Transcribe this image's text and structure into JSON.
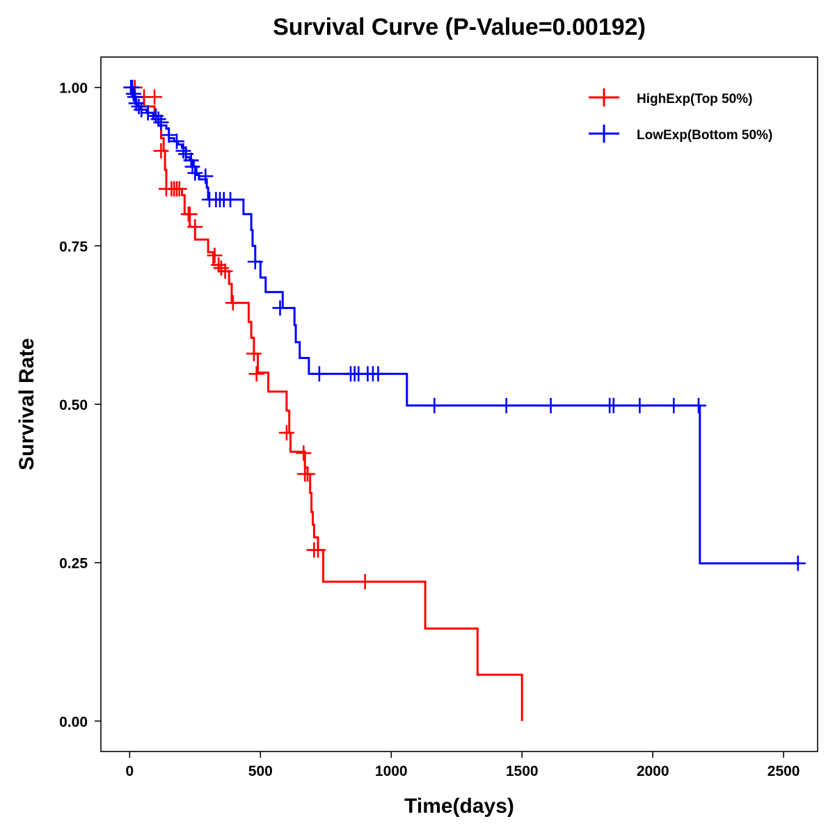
{
  "chart_data": {
    "type": "line",
    "subtype": "kaplan-meier",
    "title": "Survival Curve (P-Value=0.00192)",
    "xlabel": "Time(days)",
    "ylabel": "Survival Rate",
    "xlim": [
      -110,
      2630
    ],
    "ylim": [
      -0.048,
      1.048
    ],
    "xticks": [
      0,
      500,
      1000,
      1500,
      2000,
      2500
    ],
    "xtick_labels": [
      "0",
      "500",
      "1000",
      "1500",
      "2000",
      "2500"
    ],
    "yticks": [
      0,
      0.25,
      0.5,
      0.75,
      1.0
    ],
    "ytick_labels": [
      "0.00",
      "0.25",
      "0.50",
      "0.75",
      "1.00"
    ],
    "grid": false,
    "legend_position": "top-right",
    "series": [
      {
        "name": "HighExp(Top 50%)",
        "color": "#ff0000",
        "steps": [
          [
            0,
            1.0
          ],
          [
            15,
            0.985
          ],
          [
            55,
            0.97
          ],
          [
            95,
            0.955
          ],
          [
            110,
            0.94
          ],
          [
            120,
            0.92
          ],
          [
            130,
            0.9
          ],
          [
            135,
            0.87
          ],
          [
            140,
            0.84
          ],
          [
            200,
            0.83
          ],
          [
            210,
            0.8
          ],
          [
            230,
            0.78
          ],
          [
            250,
            0.76
          ],
          [
            300,
            0.74
          ],
          [
            320,
            0.72
          ],
          [
            340,
            0.71
          ],
          [
            360,
            0.71
          ],
          [
            380,
            0.69
          ],
          [
            390,
            0.66
          ],
          [
            455,
            0.63
          ],
          [
            465,
            0.605
          ],
          [
            475,
            0.58
          ],
          [
            490,
            0.55
          ],
          [
            530,
            0.52
          ],
          [
            600,
            0.49
          ],
          [
            610,
            0.455
          ],
          [
            615,
            0.425
          ],
          [
            670,
            0.4
          ],
          [
            680,
            0.39
          ],
          [
            690,
            0.36
          ],
          [
            695,
            0.33
          ],
          [
            700,
            0.31
          ],
          [
            705,
            0.29
          ],
          [
            720,
            0.27
          ],
          [
            740,
            0.22
          ],
          [
            1130,
            0.146
          ],
          [
            1330,
            0.073
          ],
          [
            1500,
            0.0
          ]
        ],
        "end": 1500,
        "censored": [
          [
            20,
            1.0
          ],
          [
            55,
            0.985
          ],
          [
            95,
            0.985
          ],
          [
            120,
            0.9
          ],
          [
            140,
            0.84
          ],
          [
            160,
            0.84
          ],
          [
            170,
            0.84
          ],
          [
            180,
            0.84
          ],
          [
            190,
            0.84
          ],
          [
            225,
            0.8
          ],
          [
            230,
            0.8
          ],
          [
            250,
            0.78
          ],
          [
            325,
            0.735
          ],
          [
            340,
            0.72
          ],
          [
            350,
            0.715
          ],
          [
            365,
            0.71
          ],
          [
            395,
            0.66
          ],
          [
            475,
            0.58
          ],
          [
            485,
            0.548
          ],
          [
            600,
            0.455
          ],
          [
            665,
            0.423
          ],
          [
            670,
            0.39
          ],
          [
            680,
            0.39
          ],
          [
            705,
            0.27
          ],
          [
            720,
            0.27
          ],
          [
            900,
            0.22
          ]
        ]
      },
      {
        "name": "LowExp(Bottom 50%)",
        "color": "#0000ff",
        "steps": [
          [
            0,
            1.0
          ],
          [
            5,
            0.99
          ],
          [
            10,
            0.985
          ],
          [
            15,
            0.98
          ],
          [
            25,
            0.975
          ],
          [
            30,
            0.97
          ],
          [
            40,
            0.965
          ],
          [
            65,
            0.96
          ],
          [
            90,
            0.95
          ],
          [
            110,
            0.94
          ],
          [
            140,
            0.935
          ],
          [
            150,
            0.92
          ],
          [
            170,
            0.915
          ],
          [
            185,
            0.91
          ],
          [
            200,
            0.905
          ],
          [
            215,
            0.89
          ],
          [
            230,
            0.885
          ],
          [
            245,
            0.875
          ],
          [
            255,
            0.862
          ],
          [
            265,
            0.855
          ],
          [
            290,
            0.855
          ],
          [
            295,
            0.842
          ],
          [
            300,
            0.823
          ],
          [
            435,
            0.8
          ],
          [
            465,
            0.775
          ],
          [
            470,
            0.75
          ],
          [
            480,
            0.725
          ],
          [
            500,
            0.7
          ],
          [
            520,
            0.677
          ],
          [
            585,
            0.652
          ],
          [
            630,
            0.625
          ],
          [
            635,
            0.598
          ],
          [
            650,
            0.573
          ],
          [
            685,
            0.548
          ],
          [
            1060,
            0.498
          ],
          [
            2180,
            0.249
          ]
        ],
        "end": 2560,
        "censored": [
          [
            5,
            1.0
          ],
          [
            10,
            1.0
          ],
          [
            15,
            0.99
          ],
          [
            20,
            0.985
          ],
          [
            25,
            0.975
          ],
          [
            35,
            0.97
          ],
          [
            45,
            0.965
          ],
          [
            70,
            0.96
          ],
          [
            100,
            0.955
          ],
          [
            110,
            0.95
          ],
          [
            120,
            0.945
          ],
          [
            150,
            0.925
          ],
          [
            180,
            0.915
          ],
          [
            205,
            0.9
          ],
          [
            215,
            0.895
          ],
          [
            235,
            0.885
          ],
          [
            240,
            0.875
          ],
          [
            250,
            0.865
          ],
          [
            290,
            0.86
          ],
          [
            305,
            0.823
          ],
          [
            330,
            0.823
          ],
          [
            345,
            0.823
          ],
          [
            360,
            0.823
          ],
          [
            385,
            0.823
          ],
          [
            480,
            0.725
          ],
          [
            575,
            0.652
          ],
          [
            725,
            0.548
          ],
          [
            845,
            0.548
          ],
          [
            860,
            0.548
          ],
          [
            875,
            0.548
          ],
          [
            910,
            0.548
          ],
          [
            930,
            0.548
          ],
          [
            950,
            0.548
          ],
          [
            1165,
            0.498
          ],
          [
            1440,
            0.498
          ],
          [
            1610,
            0.498
          ],
          [
            1835,
            0.498
          ],
          [
            1850,
            0.498
          ],
          [
            1950,
            0.498
          ],
          [
            2080,
            0.498
          ],
          [
            2175,
            0.498
          ],
          [
            2555,
            0.249
          ]
        ]
      }
    ]
  }
}
